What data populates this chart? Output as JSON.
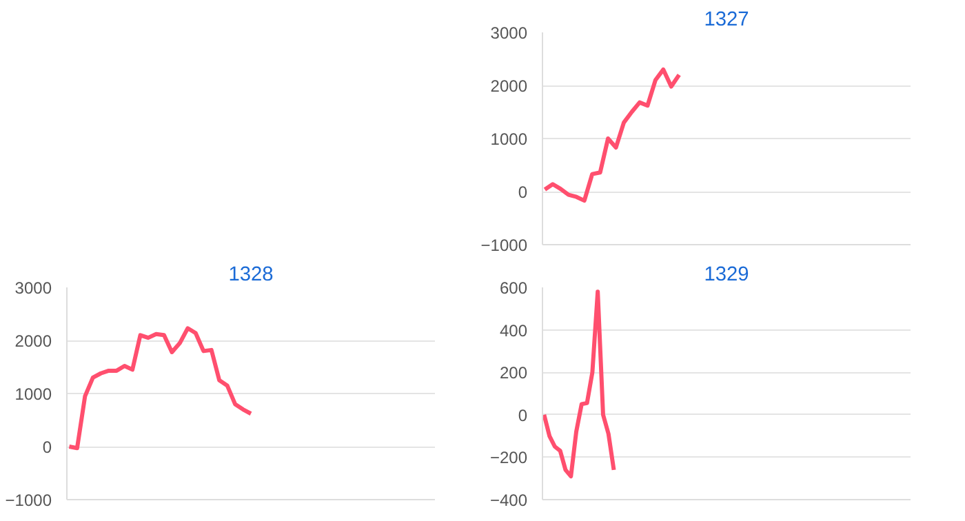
{
  "chart_data": [
    {
      "type": "line",
      "title": "1327",
      "categories": [
        null,
        null,
        null,
        null,
        null,
        null,
        null,
        null,
        null,
        null,
        null,
        null,
        null,
        null,
        null,
        null,
        null,
        null,
        null,
        null,
        null,
        null,
        null,
        null,
        null,
        null,
        null,
        null,
        null,
        null,
        null,
        null,
        null,
        null,
        null,
        null,
        null,
        null,
        null,
        null,
        null,
        null,
        null,
        null,
        null,
        null,
        null
      ],
      "series": [
        {
          "color": "#ff4f6e",
          "values": [
            40,
            140,
            50,
            -60,
            -100,
            -170,
            330,
            360,
            1000,
            830,
            1300,
            1500,
            1680,
            1620,
            2100,
            2300,
            1980,
            2200,
            null,
            null,
            null,
            null,
            null,
            null,
            null,
            null,
            null,
            null,
            null,
            null,
            null,
            null,
            null,
            null,
            null,
            null,
            null,
            null,
            null,
            null,
            null,
            null,
            null,
            null,
            null,
            null,
            null
          ]
        }
      ],
      "ylim": [
        -1000,
        3000
      ],
      "yticks": [
        -1000,
        0,
        1000,
        2000,
        3000
      ],
      "grid": "y",
      "tick_labels": "y",
      "marker": "none"
    },
    {
      "type": "line",
      "title": "1328",
      "categories": [
        null,
        null,
        null,
        null,
        null,
        null,
        null,
        null,
        null,
        null,
        null,
        null,
        null,
        null,
        null,
        null,
        null,
        null,
        null,
        null,
        null,
        null,
        null,
        null,
        null,
        null,
        null,
        null,
        null,
        null,
        null,
        null,
        null,
        null,
        null,
        null,
        null,
        null,
        null,
        null,
        null,
        null,
        null,
        null,
        null,
        null,
        null
      ],
      "series": [
        {
          "color": "#ff4f6e",
          "values": [
            0,
            -30,
            950,
            1300,
            1380,
            1430,
            1430,
            1520,
            1450,
            2100,
            2050,
            2120,
            2100,
            1780,
            1950,
            2230,
            2140,
            1800,
            1820,
            1250,
            1150,
            800,
            700,
            620,
            null,
            null,
            null,
            null,
            null,
            null,
            null,
            null,
            null,
            null,
            null,
            null,
            null,
            null,
            null,
            null,
            null,
            null,
            null,
            null,
            null,
            null,
            null
          ]
        }
      ],
      "ylim": [
        -1000,
        3000
      ],
      "yticks": [
        -1000,
        0,
        1000,
        2000,
        3000
      ],
      "grid": "y",
      "tick_labels": "y",
      "marker": "none"
    },
    {
      "type": "line",
      "title": "1329",
      "categories": [
        null,
        null,
        null,
        null,
        null,
        null,
        null,
        null,
        null,
        null,
        null,
        null,
        null,
        null,
        null,
        null,
        null,
        null,
        null,
        null,
        null,
        null,
        null,
        null,
        null,
        null,
        null,
        null,
        null,
        null,
        null,
        null,
        null,
        null,
        null,
        null,
        null,
        null,
        null,
        null,
        null,
        null,
        null,
        null,
        null,
        null,
        null,
        null,
        null,
        null,
        null,
        null,
        null,
        null,
        null,
        null,
        null,
        null,
        null,
        null,
        null,
        null,
        null,
        null,
        null,
        null,
        null,
        null,
        null
      ],
      "series": [
        {
          "color": "#ff4f6e",
          "values": [
            0,
            -100,
            -150,
            -170,
            -260,
            -290,
            -80,
            50,
            55,
            200,
            580,
            0,
            -90,
            -260,
            null,
            null,
            null,
            null,
            null,
            null,
            null,
            null,
            null,
            null,
            null,
            null,
            null,
            null,
            null,
            null,
            null,
            null,
            null,
            null,
            null,
            null,
            null,
            null,
            null,
            null,
            null,
            null,
            null,
            null,
            null,
            null,
            null,
            null,
            null,
            null,
            null,
            null,
            null,
            null,
            null,
            null,
            null,
            null,
            null,
            null,
            null,
            null,
            null,
            null,
            null,
            null,
            null,
            null,
            null
          ]
        }
      ],
      "ylim": [
        -400,
        600
      ],
      "yticks": [
        -400,
        -200,
        0,
        200,
        400,
        600
      ],
      "grid": "y",
      "tick_labels": "y",
      "marker": "none"
    }
  ]
}
